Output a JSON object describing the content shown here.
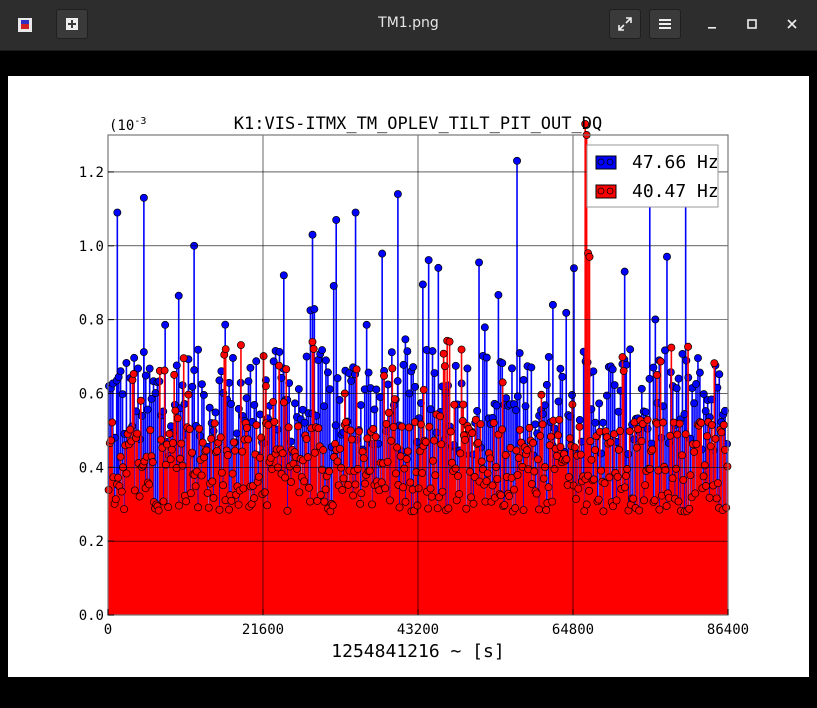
{
  "window": {
    "title": "TM1.png",
    "colors": {
      "titlebar": "#2d2d2d",
      "frame": "#000000"
    }
  },
  "chart_data": {
    "type": "scatter",
    "title": "K1:VIS-ITMX_TM_OPLEV_TILT_PIT_OUT_DQ",
    "xlabel": "1254841216 ~ [s]",
    "ylabel": "",
    "y_exponent_label": "(10",
    "y_exponent_power": "-3",
    "xlim": [
      0,
      86400
    ],
    "ylim": [
      0,
      0.0013
    ],
    "x_ticks": [
      0,
      21600,
      43200,
      64800,
      86400
    ],
    "x_tick_labels": [
      "0",
      "21600",
      "43200",
      "64800",
      "86400"
    ],
    "y_ticks": [
      0,
      0.0002,
      0.0004,
      0.0006,
      0.0008,
      0.001,
      0.0012
    ],
    "y_tick_labels": [
      "0.0",
      "0.2",
      "0.4",
      "0.6",
      "0.8",
      "1.0",
      "1.2"
    ],
    "grid": true,
    "legend_position": "top-right",
    "series": [
      {
        "name": "47.66 Hz",
        "color": "#0000ff",
        "typical_range": [
          0.00043,
          0.00072
        ],
        "peaks": [
          [
            1300,
            0.00109
          ],
          [
            5000,
            0.00113
          ],
          [
            12000,
            0.001
          ],
          [
            24500,
            0.00092
          ],
          [
            28500,
            0.00103
          ],
          [
            31800,
            0.00107
          ],
          [
            34500,
            0.00109
          ],
          [
            40400,
            0.00114
          ],
          [
            57000,
            0.00123
          ],
          [
            62000,
            0.00084
          ],
          [
            72000,
            0.00093
          ],
          [
            75500,
            0.00113
          ],
          [
            80500,
            0.00114
          ]
        ]
      },
      {
        "name": "40.47 Hz",
        "color": "#ff0000",
        "typical_range": [
          0.00028,
          0.00053
        ],
        "peaks": [
          [
            16400,
            0.00072
          ],
          [
            22000,
            0.00062
          ],
          [
            33000,
            0.0006
          ],
          [
            44000,
            0.00061
          ],
          [
            49500,
            0.00057
          ],
          [
            55000,
            0.00063
          ],
          [
            66500,
            0.00133
          ],
          [
            66700,
            0.0013
          ],
          [
            66900,
            0.00098
          ],
          [
            67100,
            0.00097
          ],
          [
            76500,
            0.00065
          ]
        ]
      }
    ]
  }
}
